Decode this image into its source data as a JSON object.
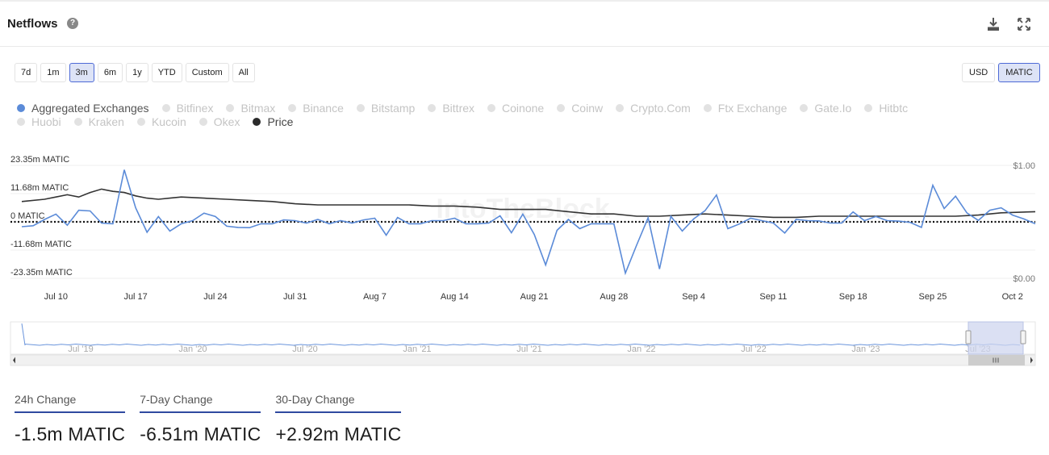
{
  "header": {
    "title": "Netflows"
  },
  "range_buttons": [
    "7d",
    "1m",
    "3m",
    "6m",
    "1y",
    "YTD",
    "Custom",
    "All"
  ],
  "range_active": "3m",
  "unit_buttons": [
    "USD",
    "MATIC"
  ],
  "unit_active": "MATIC",
  "legend": [
    {
      "label": "Aggregated Exchanges",
      "state": "on",
      "color": "#5b8bd8"
    },
    {
      "label": "Bitfinex",
      "state": "off"
    },
    {
      "label": "Bitmax",
      "state": "off"
    },
    {
      "label": "Binance",
      "state": "off"
    },
    {
      "label": "Bitstamp",
      "state": "off"
    },
    {
      "label": "Bittrex",
      "state": "off"
    },
    {
      "label": "Coinone",
      "state": "off"
    },
    {
      "label": "Coinw",
      "state": "off"
    },
    {
      "label": "Crypto.Com",
      "state": "off"
    },
    {
      "label": "Ftx Exchange",
      "state": "off"
    },
    {
      "label": "Gate.Io",
      "state": "off"
    },
    {
      "label": "Hitbtc",
      "state": "off"
    },
    {
      "label": "Huobi",
      "state": "off"
    },
    {
      "label": "Kraken",
      "state": "off"
    },
    {
      "label": "Kucoin",
      "state": "off"
    },
    {
      "label": "Okex",
      "state": "off"
    },
    {
      "label": "Price",
      "state": "on",
      "color": "#2b2b2b"
    }
  ],
  "chart_data": {
    "type": "line",
    "watermark": "IntoTheBlock",
    "y_left_ticks": [
      "23.35m MATIC",
      "11.68m MATIC",
      "0 MATIC",
      "-11.68m MATIC",
      "-23.35m MATIC"
    ],
    "y_left_range": [
      -23.35,
      23.35
    ],
    "y_left_unit": "m MATIC",
    "y_right_ticks": [
      "$1.00",
      "$0.00"
    ],
    "y_right_range": [
      0,
      1
    ],
    "x_ticks": [
      "Jul 10",
      "Jul 17",
      "Jul 24",
      "Jul 31",
      "Aug 7",
      "Aug 14",
      "Aug 21",
      "Aug 28",
      "Sep 4",
      "Sep 11",
      "Sep 18",
      "Sep 25",
      "Oct 2"
    ],
    "x_tick_days": [
      3,
      10,
      17,
      24,
      31,
      38,
      45,
      52,
      59,
      66,
      73,
      80,
      87
    ],
    "x_day_range": [
      0,
      89
    ],
    "x_start_date": "Jul 7",
    "series": [
      {
        "name": "Aggregated Exchanges",
        "color": "#5b8bd8",
        "x": [
          0,
          1,
          2,
          3,
          4,
          5,
          6,
          7,
          8,
          9,
          10,
          11,
          12,
          13,
          14,
          15,
          16,
          17,
          18,
          19,
          20,
          21,
          22,
          23,
          24,
          25,
          26,
          27,
          28,
          29,
          30,
          31,
          32,
          33,
          34,
          35,
          36,
          37,
          38,
          39,
          40,
          41,
          42,
          43,
          44,
          45,
          46,
          47,
          48,
          49,
          50,
          51,
          52,
          53,
          54,
          55,
          56,
          57,
          58,
          59,
          60,
          61,
          62,
          63,
          64,
          65,
          66,
          67,
          68,
          69,
          70,
          71,
          72,
          73,
          74,
          75,
          76,
          77,
          78,
          79,
          80,
          81,
          82,
          83,
          84,
          85,
          86,
          87,
          88,
          89
        ],
        "y": [
          -2,
          -1.6,
          1,
          3.2,
          -1.4,
          4.8,
          4.5,
          -0.5,
          -0.8,
          21.5,
          5.8,
          -4.3,
          2.2,
          -3.8,
          -0.8,
          0.5,
          3.6,
          2.2,
          -1.8,
          -2.3,
          -2.4,
          -0.8,
          -0.8,
          0.8,
          0.5,
          -0.5,
          1,
          -0.8,
          0.5,
          -0.5,
          0.8,
          1.5,
          -5.5,
          1.8,
          -0.8,
          -0.8,
          0.5,
          0.5,
          1.5,
          -0.8,
          -0.8,
          -0.5,
          2.5,
          -4.5,
          3.2,
          -5.2,
          -17.8,
          -3.5,
          1,
          -2.8,
          -0.8,
          -0.8,
          -0.8,
          -21.2,
          -9.5,
          1.7,
          -19.5,
          2.3,
          -3.8,
          1.2,
          4.6,
          11.1,
          -2.8,
          -0.9,
          1.5,
          0.5,
          -0.5,
          -4.6,
          1,
          0.5,
          0.4,
          -0.5,
          -0.5,
          4.1,
          0.5,
          2.2,
          0.5,
          0.3,
          -0.2,
          -2.3,
          15.1,
          5.5,
          10.6,
          3.7,
          0.6,
          4.8,
          5.8,
          2.8,
          1.2,
          -0.8
        ]
      },
      {
        "name": "Price",
        "color": "#333333",
        "x": [
          0,
          2,
          3,
          4,
          5,
          6,
          7,
          8,
          9,
          10,
          11,
          12,
          13,
          14,
          16,
          18,
          20,
          22,
          24,
          26,
          28,
          30,
          32,
          34,
          36,
          38,
          40,
          42,
          44,
          46,
          48,
          50,
          52,
          54,
          56,
          58,
          60,
          62,
          64,
          66,
          68,
          70,
          72,
          74,
          76,
          78,
          80,
          82,
          84,
          86,
          89
        ],
        "y": [
          0.68,
          0.7,
          0.72,
          0.74,
          0.72,
          0.76,
          0.79,
          0.77,
          0.76,
          0.73,
          0.71,
          0.7,
          0.71,
          0.72,
          0.71,
          0.7,
          0.69,
          0.68,
          0.66,
          0.65,
          0.65,
          0.65,
          0.65,
          0.65,
          0.64,
          0.64,
          0.63,
          0.61,
          0.61,
          0.61,
          0.59,
          0.57,
          0.57,
          0.55,
          0.55,
          0.56,
          0.57,
          0.56,
          0.55,
          0.54,
          0.54,
          0.55,
          0.55,
          0.55,
          0.55,
          0.55,
          0.55,
          0.55,
          0.56,
          0.58,
          0.59
        ]
      }
    ],
    "navigator": {
      "x_labels": [
        "Jul '19",
        "Jan '20",
        "Jul '20",
        "Jan '21",
        "Jul '21",
        "Jan '22",
        "Jul '22",
        "Jan '23",
        "Jul '23"
      ]
    }
  },
  "stats": [
    {
      "label": "24h Change",
      "value": "-1.5m MATIC"
    },
    {
      "label": "7-Day Change",
      "value": "-6.51m MATIC"
    },
    {
      "label": "30-Day Change",
      "value": "+2.92m MATIC"
    }
  ]
}
